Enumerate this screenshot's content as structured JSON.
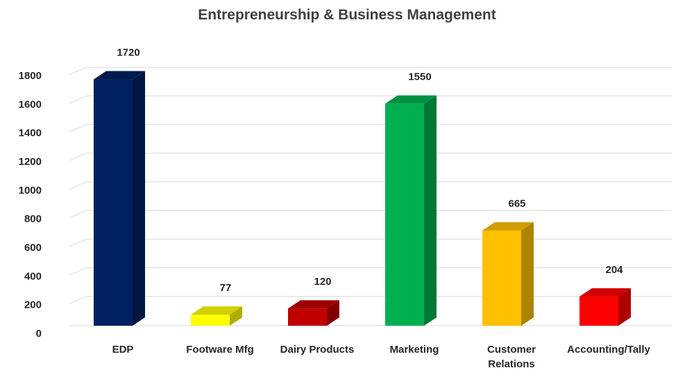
{
  "chart_data": {
    "type": "bar",
    "title": "Entrepreneurship & Business Management",
    "xlabel": "",
    "ylabel": "",
    "ylim": [
      0,
      1800
    ],
    "y_ticks": [
      0,
      200,
      400,
      600,
      800,
      1000,
      1200,
      1400,
      1600,
      1800
    ],
    "categories": [
      "EDP",
      "Footware Mfg",
      "Dairy Products",
      "Marketing",
      "Customer Relations",
      "Accounting/Tally"
    ],
    "values": [
      1720,
      77,
      120,
      1550,
      665,
      204
    ],
    "colors": [
      "#002060",
      "#FFFF00",
      "#C00000",
      "#00B050",
      "#FFC000",
      "#FF0000"
    ],
    "grid": true,
    "legend": "none",
    "style": "3d-column"
  }
}
